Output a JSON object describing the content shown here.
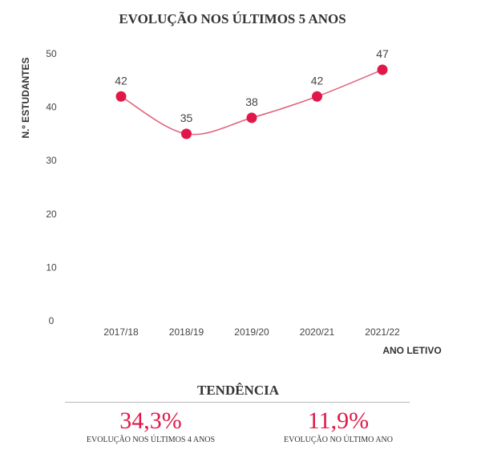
{
  "colors": {
    "accent": "#e0184a",
    "line": "#e0667f",
    "text": "#444444"
  },
  "chart_data": {
    "type": "line",
    "title": "EVOLUÇÃO NOS ÚLTIMOS 5 ANOS",
    "xlabel": "ANO LETIVO",
    "ylabel": "N.º ESTUDANTES",
    "categories": [
      "2017/18",
      "2018/19",
      "2019/20",
      "2020/21",
      "2021/22"
    ],
    "values": [
      42,
      35,
      38,
      42,
      47
    ],
    "data_labels": [
      "42",
      "35",
      "38",
      "42",
      "47"
    ],
    "yticks": [
      0,
      10,
      20,
      30,
      40,
      50
    ],
    "ytick_labels": [
      "0",
      "10",
      "20",
      "30",
      "40",
      "50"
    ],
    "ylim": [
      0,
      50
    ],
    "grid": false,
    "highlight_last_point": true
  },
  "trend": {
    "title": "TENDÊNCIA",
    "stats": [
      {
        "value": "34,3%",
        "label": "EVOLUÇÃO NOS ÚLTIMOS 4 ANOS"
      },
      {
        "value": "11,9%",
        "label": "EVOLUÇÃO NO ÚLTIMO ANO"
      }
    ]
  }
}
